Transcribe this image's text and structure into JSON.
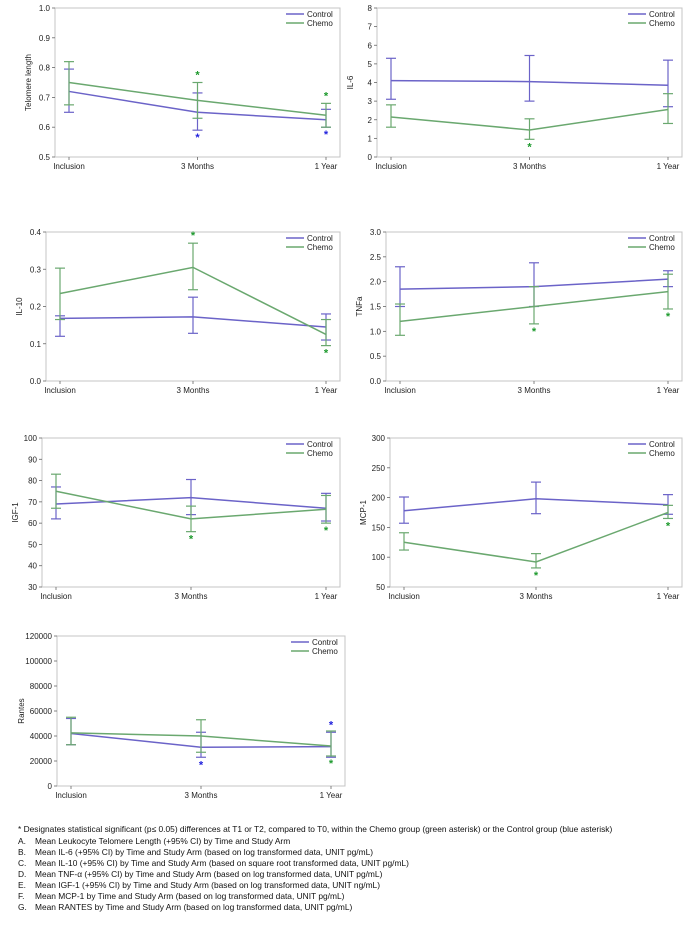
{
  "series_names": [
    "Control",
    "Chemo"
  ],
  "colors": {
    "Control": "#6b63c8",
    "Chemo": "#6aa86f",
    "control_star": "#2222dd",
    "chemo_star": "#1e9a2e"
  },
  "chart_data": [
    {
      "type": "line",
      "ylabel": "Telomere length",
      "categories": [
        "Inclusion",
        "3 Months",
        "1 Year"
      ],
      "ylim": [
        0.5,
        1.0
      ],
      "yticks": [
        "0.5",
        "0.6",
        "0.7",
        "0.8",
        "0.9",
        "1.0"
      ],
      "series": [
        {
          "name": "Control",
          "values": [
            0.72,
            0.65,
            0.625
          ],
          "ci_low": [
            0.65,
            0.59,
            0.6
          ],
          "ci_high": [
            0.795,
            0.715,
            0.66
          ]
        },
        {
          "name": "Chemo",
          "values": [
            0.75,
            0.69,
            0.64
          ],
          "ci_low": [
            0.675,
            0.63,
            0.6
          ],
          "ci_high": [
            0.82,
            0.75,
            0.68
          ]
        }
      ],
      "asterisks": [
        {
          "series": "Chemo",
          "index": 1,
          "pos": "above"
        },
        {
          "series": "Chemo",
          "index": 2,
          "pos": "above"
        },
        {
          "series": "Control",
          "index": 1,
          "pos": "below"
        },
        {
          "series": "Control",
          "index": 2,
          "pos": "below"
        }
      ]
    },
    {
      "type": "line",
      "ylabel": "IL-6",
      "categories": [
        "Inclusion",
        "3 Months",
        "1 Year"
      ],
      "ylim": [
        0,
        8
      ],
      "yticks": [
        "0",
        "1",
        "2",
        "3",
        "4",
        "5",
        "6",
        "7",
        "8"
      ],
      "series": [
        {
          "name": "Control",
          "values": [
            4.1,
            4.05,
            3.85
          ],
          "ci_low": [
            3.1,
            3.0,
            2.7
          ],
          "ci_high": [
            5.3,
            5.45,
            5.2
          ]
        },
        {
          "name": "Chemo",
          "values": [
            2.15,
            1.45,
            2.55
          ],
          "ci_low": [
            1.6,
            0.95,
            1.8
          ],
          "ci_high": [
            2.8,
            2.05,
            3.4
          ]
        }
      ],
      "asterisks": [
        {
          "series": "Chemo",
          "index": 1,
          "pos": "below"
        }
      ]
    },
    {
      "type": "line",
      "ylabel": "IL-10",
      "categories": [
        "Inclusion",
        "3 Months",
        "1 Year"
      ],
      "ylim": [
        0.0,
        0.4
      ],
      "yticks": [
        "0.0",
        "0.1",
        "0.2",
        "0.3",
        "0.4"
      ],
      "series": [
        {
          "name": "Control",
          "values": [
            0.168,
            0.172,
            0.145
          ],
          "ci_low": [
            0.12,
            0.128,
            0.11
          ],
          "ci_high": [
            0.175,
            0.225,
            0.18
          ]
        },
        {
          "name": "Chemo",
          "values": [
            0.235,
            0.305,
            0.125
          ],
          "ci_low": [
            0.165,
            0.245,
            0.095
          ],
          "ci_high": [
            0.303,
            0.37,
            0.165
          ]
        }
      ],
      "asterisks": [
        {
          "series": "Chemo",
          "index": 1,
          "pos": "above"
        },
        {
          "series": "Chemo",
          "index": 2,
          "pos": "below"
        }
      ]
    },
    {
      "type": "line",
      "ylabel": "TNFa",
      "categories": [
        "Inclusion",
        "3 Months",
        "1 Year"
      ],
      "ylim": [
        0.0,
        3.0
      ],
      "yticks": [
        "0.0",
        "0.5",
        "1.0",
        "1.5",
        "2.0",
        "2.5",
        "3.0"
      ],
      "series": [
        {
          "name": "Control",
          "values": [
            1.85,
            1.9,
            2.05
          ],
          "ci_low": [
            1.5,
            1.5,
            1.9
          ],
          "ci_high": [
            2.3,
            2.38,
            2.22
          ]
        },
        {
          "name": "Chemo",
          "values": [
            1.2,
            1.5,
            1.8
          ],
          "ci_low": [
            0.92,
            1.15,
            1.45
          ],
          "ci_high": [
            1.55,
            1.9,
            2.15
          ]
        }
      ],
      "asterisks": [
        {
          "series": "Chemo",
          "index": 1,
          "pos": "below"
        },
        {
          "series": "Chemo",
          "index": 2,
          "pos": "below"
        }
      ]
    },
    {
      "type": "line",
      "ylabel": "IGF-1",
      "categories": [
        "Inclusion",
        "3 Months",
        "1 Year"
      ],
      "ylim": [
        30,
        100
      ],
      "yticks": [
        "30",
        "40",
        "50",
        "60",
        "70",
        "80",
        "90",
        "100"
      ],
      "series": [
        {
          "name": "Control",
          "values": [
            69,
            72,
            67
          ],
          "ci_low": [
            62,
            64,
            61
          ],
          "ci_high": [
            77,
            80.5,
            74
          ]
        },
        {
          "name": "Chemo",
          "values": [
            75,
            62,
            66.5
          ],
          "ci_low": [
            67,
            56,
            60
          ],
          "ci_high": [
            83,
            68,
            73
          ]
        }
      ],
      "asterisks": [
        {
          "series": "Chemo",
          "index": 1,
          "pos": "below"
        },
        {
          "series": "Chemo",
          "index": 2,
          "pos": "below"
        }
      ]
    },
    {
      "type": "line",
      "ylabel": "MCP-1",
      "categories": [
        "Inclusion",
        "3 Months",
        "1 Year"
      ],
      "ylim": [
        50,
        300
      ],
      "yticks": [
        "50",
        "100",
        "150",
        "200",
        "250",
        "300"
      ],
      "series": [
        {
          "name": "Control",
          "values": [
            178,
            198,
            188
          ],
          "ci_low": [
            157,
            173,
            172
          ],
          "ci_high": [
            201,
            226,
            205
          ]
        },
        {
          "name": "Chemo",
          "values": [
            125,
            92,
            175
          ],
          "ci_low": [
            112,
            82,
            165
          ],
          "ci_high": [
            141,
            106,
            187
          ]
        }
      ],
      "asterisks": [
        {
          "series": "Chemo",
          "index": 1,
          "pos": "below"
        },
        {
          "series": "Chemo",
          "index": 2,
          "pos": "below"
        }
      ]
    },
    {
      "type": "line",
      "ylabel": "Rantes",
      "categories": [
        "Inclusion",
        "3 Months",
        "1 Year"
      ],
      "ylim": [
        0,
        120000
      ],
      "yticks": [
        "0",
        "20000",
        "40000",
        "60000",
        "80000",
        "100000",
        "120000"
      ],
      "series": [
        {
          "name": "Control",
          "values": [
            42000,
            31000,
            31500
          ],
          "ci_low": [
            33000,
            23000,
            23000
          ],
          "ci_high": [
            54000,
            43000,
            43000
          ]
        },
        {
          "name": "Chemo",
          "values": [
            42500,
            40000,
            32000
          ],
          "ci_low": [
            33000,
            27000,
            24000
          ],
          "ci_high": [
            55000,
            53000,
            44000
          ]
        }
      ],
      "asterisks": [
        {
          "series": "Control",
          "index": 1,
          "pos": "below"
        },
        {
          "series": "Control",
          "index": 2,
          "pos": "above"
        },
        {
          "series": "Chemo",
          "index": 2,
          "pos": "below"
        }
      ]
    }
  ],
  "caption": {
    "note": "* Designates statistical significant (p≤ 0.05) differences at T1 or T2, compared to T0, within the Chemo group (green asterisk) or the Control group (blue asterisk)",
    "items": [
      {
        "letter": "A.",
        "text": "Mean Leukocyte Telomere Length (+95% CI) by Time and Study Arm"
      },
      {
        "letter": "B.",
        "text": "Mean IL-6 (+95% CI) by Time and Study Arm (based on log transformed data, UNIT pg/mL)"
      },
      {
        "letter": "C.",
        "text": "Mean IL-10 (+95% CI) by Time and Study Arm (based on square root transformed data, UNIT pg/mL)"
      },
      {
        "letter": "D.",
        "text": "Mean TNF-α (+95% CI) by Time and Study Arm (based on log transformed data, UNIT pg/mL)"
      },
      {
        "letter": "E.",
        "text": "Mean IGF-1 (+95% CI) by Time and Study Arm (based on log transformed data, UNIT ng/mL)"
      },
      {
        "letter": "F.",
        "text": "Mean MCP-1 by Time and Study Arm (based on log transformed data, UNIT pg/mL)"
      },
      {
        "letter": "G.",
        "text": "Mean RANTES by Time and Study Arm (based on log transformed data, UNIT pg/mL)"
      }
    ]
  }
}
